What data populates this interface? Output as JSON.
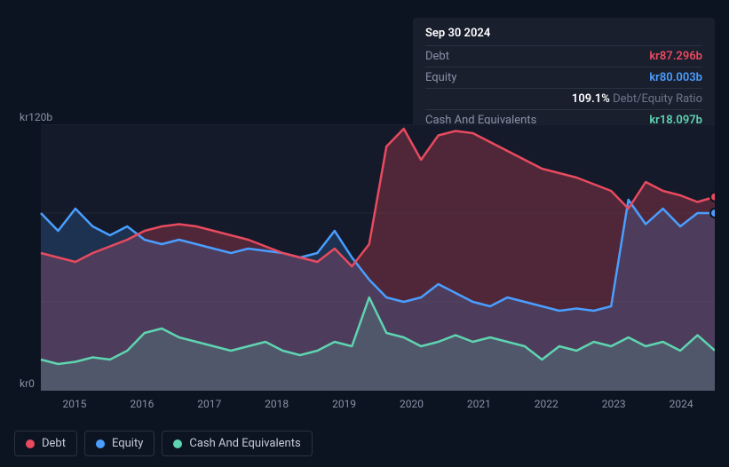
{
  "tooltip": {
    "date": "Sep 30 2024",
    "rows": [
      {
        "label": "Debt",
        "value": "kr87.296b",
        "color": "#e84a5f"
      },
      {
        "label": "Equity",
        "value": "kr80.003b",
        "color": "#4a9eff"
      },
      {
        "label": "",
        "value": "109.1%",
        "sub": "Debt/Equity Ratio",
        "color": "#ffffff"
      },
      {
        "label": "Cash And Equivalents",
        "value": "kr18.097b",
        "color": "#5fd4b1"
      }
    ]
  },
  "chart": {
    "type": "area",
    "background_color": "#0d1421",
    "plot_background": "#141a2a",
    "grid_color": "#2a3142",
    "y_max": 120,
    "y_min": 0,
    "y_labels": [
      {
        "v": 120,
        "text": "kr120b"
      },
      {
        "v": 0,
        "text": "kr0"
      }
    ],
    "x_labels": [
      "2015",
      "2016",
      "2017",
      "2018",
      "2019",
      "2020",
      "2021",
      "2022",
      "2023",
      "2024"
    ],
    "x_domain": [
      0,
      39
    ],
    "series": [
      {
        "name": "Debt",
        "color": "#e84a5f",
        "fill": "rgba(232,74,95,0.28)",
        "line_width": 2.5,
        "data": [
          62,
          60,
          58,
          62,
          65,
          68,
          72,
          74,
          75,
          74,
          72,
          70,
          68,
          65,
          62,
          60,
          58,
          64,
          56,
          66,
          110,
          118,
          104,
          115,
          117,
          116,
          112,
          108,
          104,
          100,
          98,
          96,
          93,
          90,
          82,
          94,
          90,
          88,
          85,
          87.296
        ]
      },
      {
        "name": "Equity",
        "color": "#4a9eff",
        "fill": "rgba(74,158,255,0.18)",
        "line_width": 2.5,
        "data": [
          80,
          72,
          82,
          74,
          70,
          74,
          68,
          66,
          68,
          66,
          64,
          62,
          64,
          63,
          62,
          60,
          62,
          72,
          60,
          50,
          42,
          40,
          42,
          48,
          44,
          40,
          38,
          42,
          40,
          38,
          36,
          37,
          36,
          38,
          86,
          75,
          82,
          74,
          80,
          80.003
        ]
      },
      {
        "name": "Cash And Equivalents",
        "color": "#5fd4b1",
        "fill": "rgba(95,212,177,0.18)",
        "line_width": 2.5,
        "data": [
          14,
          12,
          13,
          15,
          14,
          18,
          26,
          28,
          24,
          22,
          20,
          18,
          20,
          22,
          18,
          16,
          18,
          22,
          20,
          42,
          26,
          24,
          20,
          22,
          25,
          22,
          24,
          22,
          20,
          14,
          20,
          18,
          22,
          20,
          24,
          20,
          22,
          18,
          25,
          18.097
        ]
      }
    ],
    "end_markers": [
      {
        "color": "#e84a5f",
        "v": 87.296
      },
      {
        "color": "#4a9eff",
        "v": 80.003
      }
    ]
  },
  "legend": [
    {
      "label": "Debt",
      "color": "#e84a5f"
    },
    {
      "label": "Equity",
      "color": "#4a9eff"
    },
    {
      "label": "Cash And Equivalents",
      "color": "#5fd4b1"
    }
  ]
}
